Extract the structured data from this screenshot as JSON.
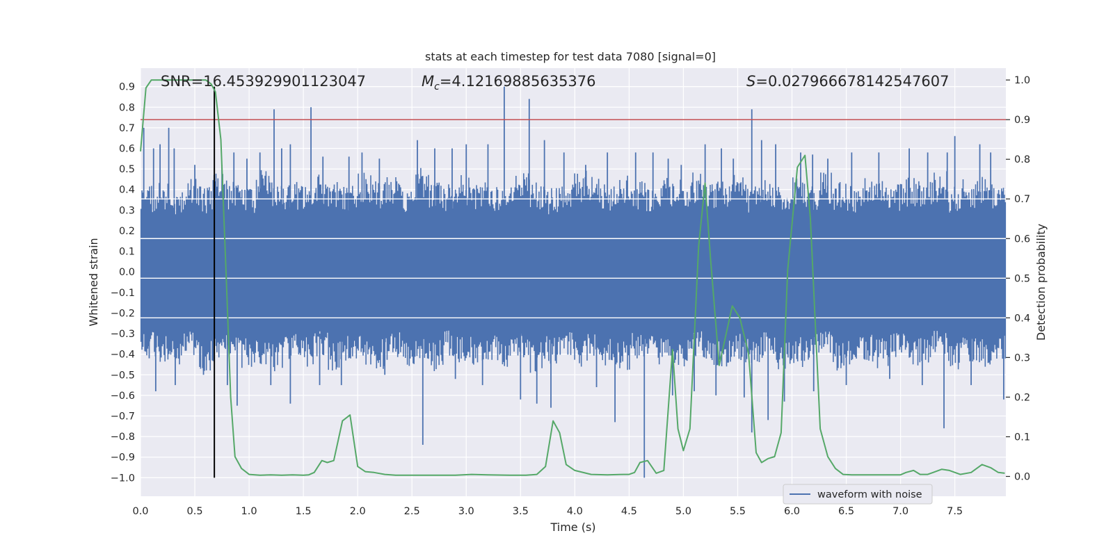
{
  "chart_data": {
    "type": "line",
    "title": "stats at each timestep for test data 7080 [signal=0]",
    "xlabel": "Time (s)",
    "ylabel_left": "Whitened strain",
    "ylabel_right": "Detection probability",
    "xlim": [
      0.0,
      7.97
    ],
    "ylim_left": [
      -1.09,
      0.99
    ],
    "ylim_right": [
      -0.05,
      1.03
    ],
    "x_ticks": [
      0.0,
      0.5,
      1.0,
      1.5,
      2.0,
      2.5,
      3.0,
      3.5,
      4.0,
      4.5,
      5.0,
      5.5,
      6.0,
      6.5,
      7.0,
      7.5
    ],
    "x_tick_labels": [
      "0.0",
      "0.5",
      "1.0",
      "1.5",
      "2.0",
      "2.5",
      "3.0",
      "3.5",
      "4.0",
      "4.5",
      "5.0",
      "5.5",
      "6.0",
      "6.5",
      "7.0",
      "7.5"
    ],
    "y_left_ticks": [
      0.9,
      0.8,
      0.7,
      0.6,
      0.5,
      0.4,
      0.3,
      0.2,
      0.1,
      0.0,
      -0.1,
      -0.2,
      -0.3,
      -0.4,
      -0.5,
      -0.6,
      -0.7,
      -0.8,
      -0.9,
      -1.0
    ],
    "y_left_tick_labels": [
      "0.9",
      "0.8",
      "0.7",
      "0.6",
      "0.5",
      "0.4",
      "0.3",
      "0.2",
      "0.1",
      "0.0",
      "−0.1",
      "−0.2",
      "−0.3",
      "−0.4",
      "−0.5",
      "−0.6",
      "−0.7",
      "−0.8",
      "−0.9",
      "−1.0"
    ],
    "y_right_ticks": [
      1.0,
      0.9,
      0.8,
      0.7,
      0.6,
      0.5,
      0.4,
      0.3,
      0.2,
      0.1,
      0.0
    ],
    "y_right_tick_labels": [
      "1.0",
      "0.9",
      "0.8",
      "0.7",
      "0.6",
      "0.5",
      "0.4",
      "0.3",
      "0.2",
      "0.1",
      "0.0"
    ],
    "threshold": {
      "axis": "right",
      "value": 0.9,
      "color": "#c44e52"
    },
    "marker_line": {
      "x": 0.68,
      "y_from": -1.0,
      "y_to": 0.9,
      "color": "#000000"
    },
    "annotations": {
      "snr": "SNR=16.453929901123047",
      "mc_value": "=4.12169885635376",
      "s_value": "=0.027966678142547607"
    },
    "legend": {
      "label": "waveform with noise",
      "placement": "lower-right"
    },
    "series": [
      {
        "name": "waveform with noise",
        "axis": "left",
        "color": "#4c72b0",
        "envelope_upper": [
          0.38,
          0.4,
          0.36,
          0.42,
          0.38,
          0.44,
          0.4,
          0.37,
          0.45,
          0.42,
          0.4,
          0.38,
          0.43,
          0.41,
          0.39,
          0.44,
          0.4,
          0.42,
          0.38,
          0.46,
          0.41,
          0.39,
          0.43,
          0.4,
          0.38,
          0.42,
          0.44,
          0.4,
          0.37,
          0.41,
          0.45,
          0.42,
          0.39,
          0.43,
          0.4,
          0.38,
          0.42,
          0.41,
          0.44,
          0.39,
          0.4,
          0.43,
          0.38,
          0.41,
          0.4,
          0.42,
          0.39,
          0.44,
          0.4,
          0.38,
          0.43,
          0.41,
          0.39,
          0.42,
          0.4,
          0.45,
          0.38,
          0.41,
          0.43,
          0.4
        ],
        "envelope_lower": [
          -0.38,
          -0.4,
          -0.42,
          -0.37,
          -0.44,
          -0.4,
          -0.38,
          -0.43,
          -0.41,
          -0.45,
          -0.39,
          -0.42,
          -0.38,
          -0.44,
          -0.4,
          -0.41,
          -0.43,
          -0.39,
          -0.42,
          -0.4,
          -0.44,
          -0.38,
          -0.41,
          -0.43,
          -0.4,
          -0.42,
          -0.39,
          -0.45,
          -0.41,
          -0.38,
          -0.43,
          -0.4,
          -0.42,
          -0.44,
          -0.39,
          -0.41,
          -0.4,
          -0.43,
          -0.38,
          -0.42,
          -0.44,
          -0.4,
          -0.41,
          -0.39,
          -0.43,
          -0.42,
          -0.4,
          -0.38,
          -0.44,
          -0.41,
          -0.4,
          -0.43,
          -0.39,
          -0.42,
          -0.41,
          -0.38,
          -0.44,
          -0.4,
          -0.42,
          -0.41
        ],
        "spikes": [
          {
            "x": 0.03,
            "y": 0.7
          },
          {
            "x": 0.12,
            "y": 0.6
          },
          {
            "x": 0.18,
            "y": 0.62
          },
          {
            "x": 0.26,
            "y": 0.7
          },
          {
            "x": 0.31,
            "y": 0.6
          },
          {
            "x": 0.5,
            "y": 0.52
          },
          {
            "x": 0.75,
            "y": 0.52
          },
          {
            "x": 0.86,
            "y": 0.58
          },
          {
            "x": 0.98,
            "y": 0.55
          },
          {
            "x": 1.1,
            "y": 0.58
          },
          {
            "x": 1.23,
            "y": 0.79
          },
          {
            "x": 1.3,
            "y": 0.6
          },
          {
            "x": 1.38,
            "y": 0.62
          },
          {
            "x": 1.57,
            "y": 0.8
          },
          {
            "x": 1.68,
            "y": 0.56
          },
          {
            "x": 1.92,
            "y": 0.56
          },
          {
            "x": 2.04,
            "y": 0.58
          },
          {
            "x": 2.2,
            "y": 0.55
          },
          {
            "x": 2.55,
            "y": 0.64
          },
          {
            "x": 2.71,
            "y": 0.6
          },
          {
            "x": 2.87,
            "y": 0.6
          },
          {
            "x": 3.0,
            "y": 0.62
          },
          {
            "x": 3.2,
            "y": 0.62
          },
          {
            "x": 3.35,
            "y": 0.9
          },
          {
            "x": 3.58,
            "y": 0.84
          },
          {
            "x": 3.72,
            "y": 0.64
          },
          {
            "x": 3.9,
            "y": 0.58
          },
          {
            "x": 4.1,
            "y": 0.52
          },
          {
            "x": 4.3,
            "y": 0.58
          },
          {
            "x": 4.56,
            "y": 0.58
          },
          {
            "x": 4.72,
            "y": 0.58
          },
          {
            "x": 4.86,
            "y": 0.55
          },
          {
            "x": 4.98,
            "y": 0.52
          },
          {
            "x": 5.2,
            "y": 0.62
          },
          {
            "x": 5.35,
            "y": 0.6
          },
          {
            "x": 5.46,
            "y": 0.55
          },
          {
            "x": 5.63,
            "y": 0.79
          },
          {
            "x": 5.72,
            "y": 0.64
          },
          {
            "x": 5.85,
            "y": 0.62
          },
          {
            "x": 6.08,
            "y": 0.58
          },
          {
            "x": 6.19,
            "y": 0.57
          },
          {
            "x": 6.33,
            "y": 0.55
          },
          {
            "x": 6.55,
            "y": 0.58
          },
          {
            "x": 6.8,
            "y": 0.58
          },
          {
            "x": 7.08,
            "y": 0.6
          },
          {
            "x": 7.25,
            "y": 0.58
          },
          {
            "x": 7.43,
            "y": 0.58
          },
          {
            "x": 7.5,
            "y": 0.66
          },
          {
            "x": 7.73,
            "y": 0.62
          },
          {
            "x": 7.83,
            "y": 0.58
          },
          {
            "x": 0.08,
            "y": -0.42
          },
          {
            "x": 0.14,
            "y": -0.58
          },
          {
            "x": 0.32,
            "y": -0.55
          },
          {
            "x": 0.58,
            "y": -0.5
          },
          {
            "x": 0.8,
            "y": -0.55
          },
          {
            "x": 0.89,
            "y": -0.65
          },
          {
            "x": 1.2,
            "y": -0.55
          },
          {
            "x": 1.38,
            "y": -0.64
          },
          {
            "x": 1.65,
            "y": -0.55
          },
          {
            "x": 1.85,
            "y": -0.55
          },
          {
            "x": 2.25,
            "y": -0.5
          },
          {
            "x": 2.6,
            "y": -0.84
          },
          {
            "x": 2.9,
            "y": -0.52
          },
          {
            "x": 3.15,
            "y": -0.55
          },
          {
            "x": 3.5,
            "y": -0.62
          },
          {
            "x": 3.65,
            "y": -0.64
          },
          {
            "x": 3.78,
            "y": -0.66
          },
          {
            "x": 4.2,
            "y": -0.56
          },
          {
            "x": 4.37,
            "y": -0.73
          },
          {
            "x": 4.64,
            "y": -1.0
          },
          {
            "x": 4.9,
            "y": -0.6
          },
          {
            "x": 5.1,
            "y": -0.58
          },
          {
            "x": 5.3,
            "y": -0.6
          },
          {
            "x": 5.56,
            "y": -0.61
          },
          {
            "x": 5.63,
            "y": -0.78
          },
          {
            "x": 5.78,
            "y": -0.72
          },
          {
            "x": 5.93,
            "y": -0.63
          },
          {
            "x": 6.2,
            "y": -0.58
          },
          {
            "x": 6.5,
            "y": -0.55
          },
          {
            "x": 6.9,
            "y": -0.52
          },
          {
            "x": 7.2,
            "y": -0.55
          },
          {
            "x": 7.4,
            "y": -0.76
          },
          {
            "x": 7.65,
            "y": -0.55
          },
          {
            "x": 7.95,
            "y": -0.62
          }
        ]
      },
      {
        "name": "detection probability",
        "axis": "right",
        "color": "#55a868",
        "x": [
          0.0,
          0.05,
          0.1,
          0.15,
          0.2,
          0.3,
          0.4,
          0.5,
          0.6,
          0.65,
          0.69,
          0.74,
          0.79,
          0.83,
          0.87,
          0.93,
          1.0,
          1.1,
          1.2,
          1.3,
          1.4,
          1.5,
          1.55,
          1.6,
          1.67,
          1.72,
          1.78,
          1.86,
          1.93,
          2.0,
          2.07,
          2.15,
          2.25,
          2.35,
          2.5,
          2.7,
          2.9,
          3.05,
          3.2,
          3.4,
          3.55,
          3.65,
          3.73,
          3.8,
          3.86,
          3.92,
          4.0,
          4.15,
          4.3,
          4.45,
          4.5,
          4.55,
          4.6,
          4.67,
          4.75,
          4.82,
          4.9,
          4.95,
          5.0,
          5.06,
          5.14,
          5.2,
          5.25,
          5.33,
          5.45,
          5.52,
          5.6,
          5.67,
          5.72,
          5.78,
          5.84,
          5.9,
          5.96,
          6.05,
          6.12,
          6.17,
          6.26,
          6.33,
          6.4,
          6.47,
          6.55,
          6.7,
          6.9,
          7.0,
          7.05,
          7.12,
          7.18,
          7.25,
          7.3,
          7.38,
          7.45,
          7.55,
          7.65,
          7.75,
          7.83,
          7.9,
          7.96
        ],
        "y": [
          0.82,
          0.98,
          1.0,
          1.0,
          1.0,
          1.0,
          1.0,
          1.0,
          1.0,
          0.99,
          0.97,
          0.85,
          0.5,
          0.2,
          0.05,
          0.02,
          0.005,
          0.003,
          0.004,
          0.003,
          0.004,
          0.003,
          0.004,
          0.01,
          0.04,
          0.035,
          0.04,
          0.14,
          0.155,
          0.025,
          0.012,
          0.01,
          0.005,
          0.003,
          0.003,
          0.003,
          0.003,
          0.005,
          0.004,
          0.003,
          0.003,
          0.005,
          0.025,
          0.14,
          0.11,
          0.03,
          0.015,
          0.005,
          0.004,
          0.005,
          0.005,
          0.01,
          0.035,
          0.04,
          0.008,
          0.015,
          0.32,
          0.12,
          0.065,
          0.12,
          0.58,
          0.74,
          0.55,
          0.28,
          0.43,
          0.4,
          0.31,
          0.06,
          0.035,
          0.045,
          0.05,
          0.11,
          0.52,
          0.78,
          0.81,
          0.65,
          0.12,
          0.05,
          0.02,
          0.005,
          0.004,
          0.004,
          0.004,
          0.004,
          0.01,
          0.015,
          0.005,
          0.005,
          0.01,
          0.018,
          0.015,
          0.005,
          0.01,
          0.03,
          0.022,
          0.01,
          0.008
        ]
      }
    ]
  }
}
